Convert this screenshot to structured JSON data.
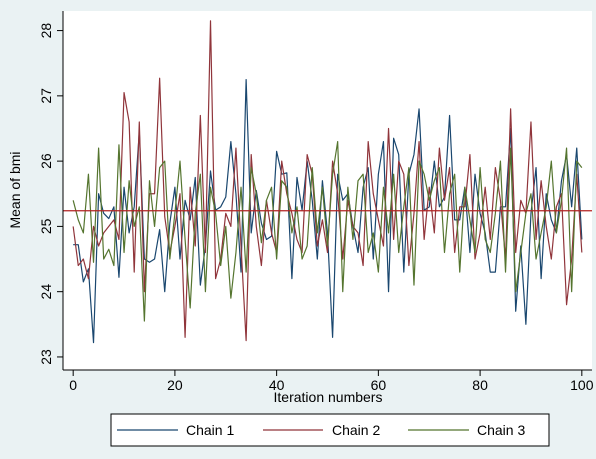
{
  "chart_data": {
    "type": "line",
    "xlabel": "Iteration numbers",
    "ylabel": "Mean of bmi",
    "xlim": [
      -2,
      102
    ],
    "ylim": [
      22.8,
      28.3
    ],
    "x_ticks": [
      0,
      20,
      40,
      60,
      80,
      100
    ],
    "y_ticks": [
      23,
      24,
      25,
      26,
      27,
      28
    ],
    "grid": false,
    "legend_placement": "bottom",
    "reference_line": {
      "y": 25.24,
      "color": "#b22222"
    },
    "x": [
      0,
      1,
      2,
      3,
      4,
      5,
      6,
      7,
      8,
      9,
      10,
      11,
      12,
      13,
      14,
      15,
      16,
      17,
      18,
      19,
      20,
      21,
      22,
      23,
      24,
      25,
      26,
      27,
      28,
      29,
      30,
      31,
      32,
      33,
      34,
      35,
      36,
      37,
      38,
      39,
      40,
      41,
      42,
      43,
      44,
      45,
      46,
      47,
      48,
      49,
      50,
      51,
      52,
      53,
      54,
      55,
      56,
      57,
      58,
      59,
      60,
      61,
      62,
      63,
      64,
      65,
      66,
      67,
      68,
      69,
      70,
      71,
      72,
      73,
      74,
      75,
      76,
      77,
      78,
      79,
      80,
      81,
      82,
      83,
      84,
      85,
      86,
      87,
      88,
      89,
      90,
      91,
      92,
      93,
      94,
      95,
      96,
      97,
      98,
      99,
      100
    ],
    "series": [
      {
        "name": "Chain 1",
        "color": "#1a476f",
        "values": [
          24.72,
          24.72,
          24.15,
          24.35,
          23.22,
          25.5,
          25.2,
          25.12,
          25.3,
          24.22,
          25.6,
          24.9,
          25.3,
          26.45,
          24.5,
          24.45,
          24.5,
          24.95,
          24.0,
          25.05,
          25.6,
          24.5,
          25.4,
          25.1,
          25.75,
          24.1,
          24.7,
          25.85,
          25.25,
          25.3,
          25.45,
          26.3,
          25.5,
          24.3,
          27.25,
          24.9,
          25.55,
          25.05,
          24.8,
          24.85,
          26.15,
          25.8,
          25.82,
          24.2,
          25.75,
          25.25,
          26.0,
          25.4,
          24.5,
          25.7,
          24.9,
          23.3,
          25.8,
          25.4,
          25.5,
          25.0,
          24.6,
          25.6,
          25.9,
          24.5,
          25.8,
          26.3,
          24.0,
          26.35,
          26.1,
          24.3,
          25.8,
          26.1,
          26.8,
          25.25,
          25.3,
          26.0,
          25.3,
          25.45,
          26.7,
          25.1,
          25.1,
          25.6,
          24.6,
          25.8,
          25.2,
          24.9,
          24.3,
          24.3,
          25.3,
          25.3,
          26.5,
          23.7,
          24.7,
          23.5,
          25.2,
          25.9,
          24.2,
          25.5,
          25.1,
          24.9,
          25.7,
          26.1,
          25.3,
          26.2,
          24.8
        ]
      },
      {
        "name": "Chain 2",
        "color": "#90353b",
        "values": [
          25.0,
          24.4,
          24.5,
          24.2,
          25.0,
          24.7,
          24.9,
          25.0,
          25.1,
          24.8,
          27.05,
          26.6,
          24.3,
          26.6,
          24.0,
          25.5,
          25.5,
          27.27,
          25.15,
          24.6,
          25.0,
          25.5,
          23.3,
          25.6,
          24.7,
          26.7,
          24.6,
          28.15,
          24.2,
          24.5,
          25.2,
          25.0,
          26.2,
          24.7,
          23.25,
          26.1,
          25.0,
          24.4,
          25.4,
          24.9,
          24.6,
          26.0,
          25.5,
          25.2,
          24.8,
          24.6,
          26.1,
          25.8,
          24.7,
          25.1,
          24.6,
          26.0,
          25.5,
          24.5,
          25.4,
          25.0,
          24.9,
          24.4,
          26.3,
          25.5,
          25.1,
          24.7,
          26.5,
          24.8,
          26.0,
          25.8,
          24.4,
          25.2,
          26.3,
          24.8,
          25.6,
          24.9,
          26.2,
          25.4,
          25.9,
          24.6,
          25.3,
          25.3,
          26.1,
          24.5,
          24.9,
          25.6,
          24.8,
          25.9,
          25.4,
          24.5,
          26.8,
          24.6,
          25.4,
          25.2,
          26.6,
          24.8,
          25.7,
          25.0,
          24.5,
          25.3,
          25.5,
          23.8,
          24.5,
          25.8,
          24.6
        ]
      },
      {
        "name": "Chain 3",
        "color": "#55752f",
        "values": [
          25.4,
          25.1,
          24.9,
          25.8,
          24.45,
          26.2,
          24.5,
          24.65,
          24.4,
          26.25,
          24.6,
          25.7,
          25.0,
          25.3,
          23.55,
          25.7,
          25.0,
          25.9,
          26.0,
          24.5,
          25.2,
          26.0,
          24.8,
          23.75,
          25.2,
          25.8,
          24.0,
          25.6,
          25.2,
          24.4,
          25.0,
          23.9,
          24.6,
          25.6,
          24.3,
          25.9,
          25.5,
          24.75,
          25.4,
          25.6,
          24.5,
          25.7,
          25.6,
          24.9,
          25.3,
          24.5,
          24.7,
          25.9,
          24.9,
          25.6,
          24.7,
          25.8,
          26.3,
          24.0,
          25.6,
          24.8,
          25.7,
          25.8,
          24.6,
          24.9,
          24.3,
          25.6,
          24.9,
          25.8,
          24.6,
          25.3,
          25.9,
          24.1,
          26.0,
          25.8,
          25.4,
          25.7,
          25.9,
          24.6,
          25.5,
          25.8,
          24.3,
          25.6,
          25.1,
          24.6,
          25.9,
          24.8,
          24.6,
          25.2,
          26.0,
          24.3,
          26.2,
          24.0,
          24.6,
          25.2,
          25.5,
          24.5,
          24.9,
          25.3,
          26.0,
          24.9,
          25.4,
          26.2,
          24.0,
          26.0,
          25.9
        ]
      }
    ]
  }
}
